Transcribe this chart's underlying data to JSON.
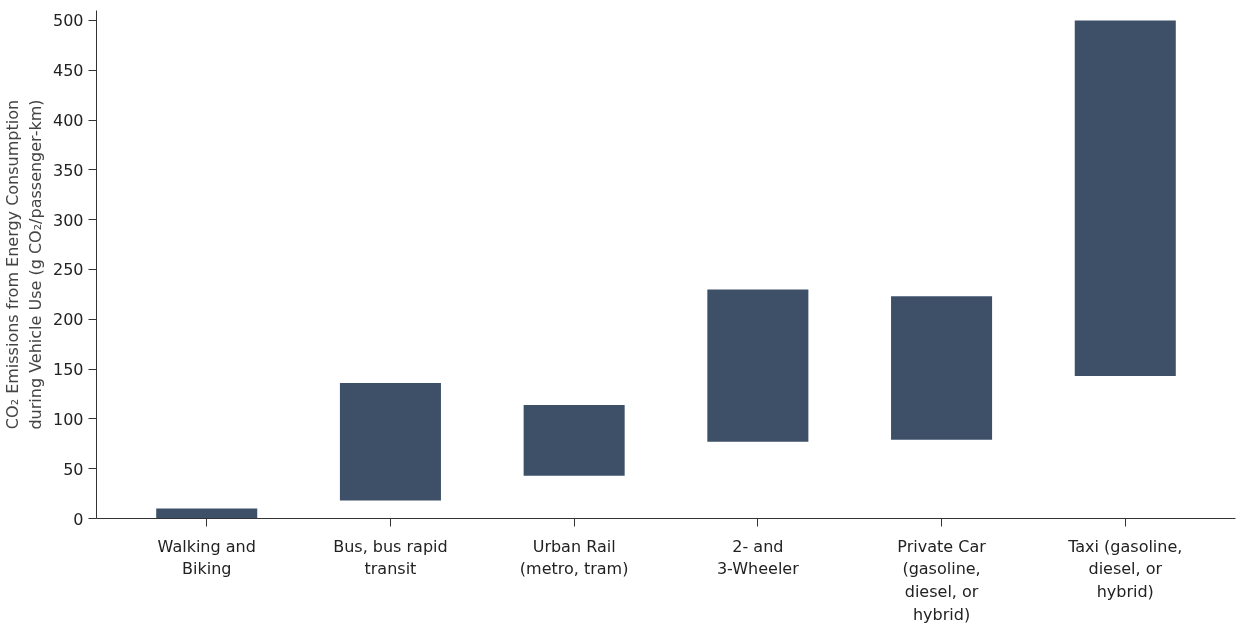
{
  "chart_data": {
    "type": "bar",
    "ylabel": "CO₂ Emissions from Energy Consumption\nduring Vehicle Use (g CO₂/passenger-km)",
    "categories": [
      "Walking and Biking",
      "Bus, bus rapid transit",
      "Urban Rail (metro, tram)",
      "2- and 3-Wheeler",
      "Private Car (gasoline, diesel, or hybrid)",
      "Taxi (gasoline, diesel, or hybrid)"
    ],
    "base": [
      0,
      18,
      43,
      77,
      79,
      143
    ],
    "values": [
      10,
      118,
      71,
      153,
      144,
      357
    ],
    "color": "#3d5068",
    "ylim": [
      0,
      510
    ],
    "yticks": [
      0,
      50,
      100,
      150,
      200,
      250,
      300,
      350,
      400,
      450,
      500
    ],
    "grid": false
  }
}
